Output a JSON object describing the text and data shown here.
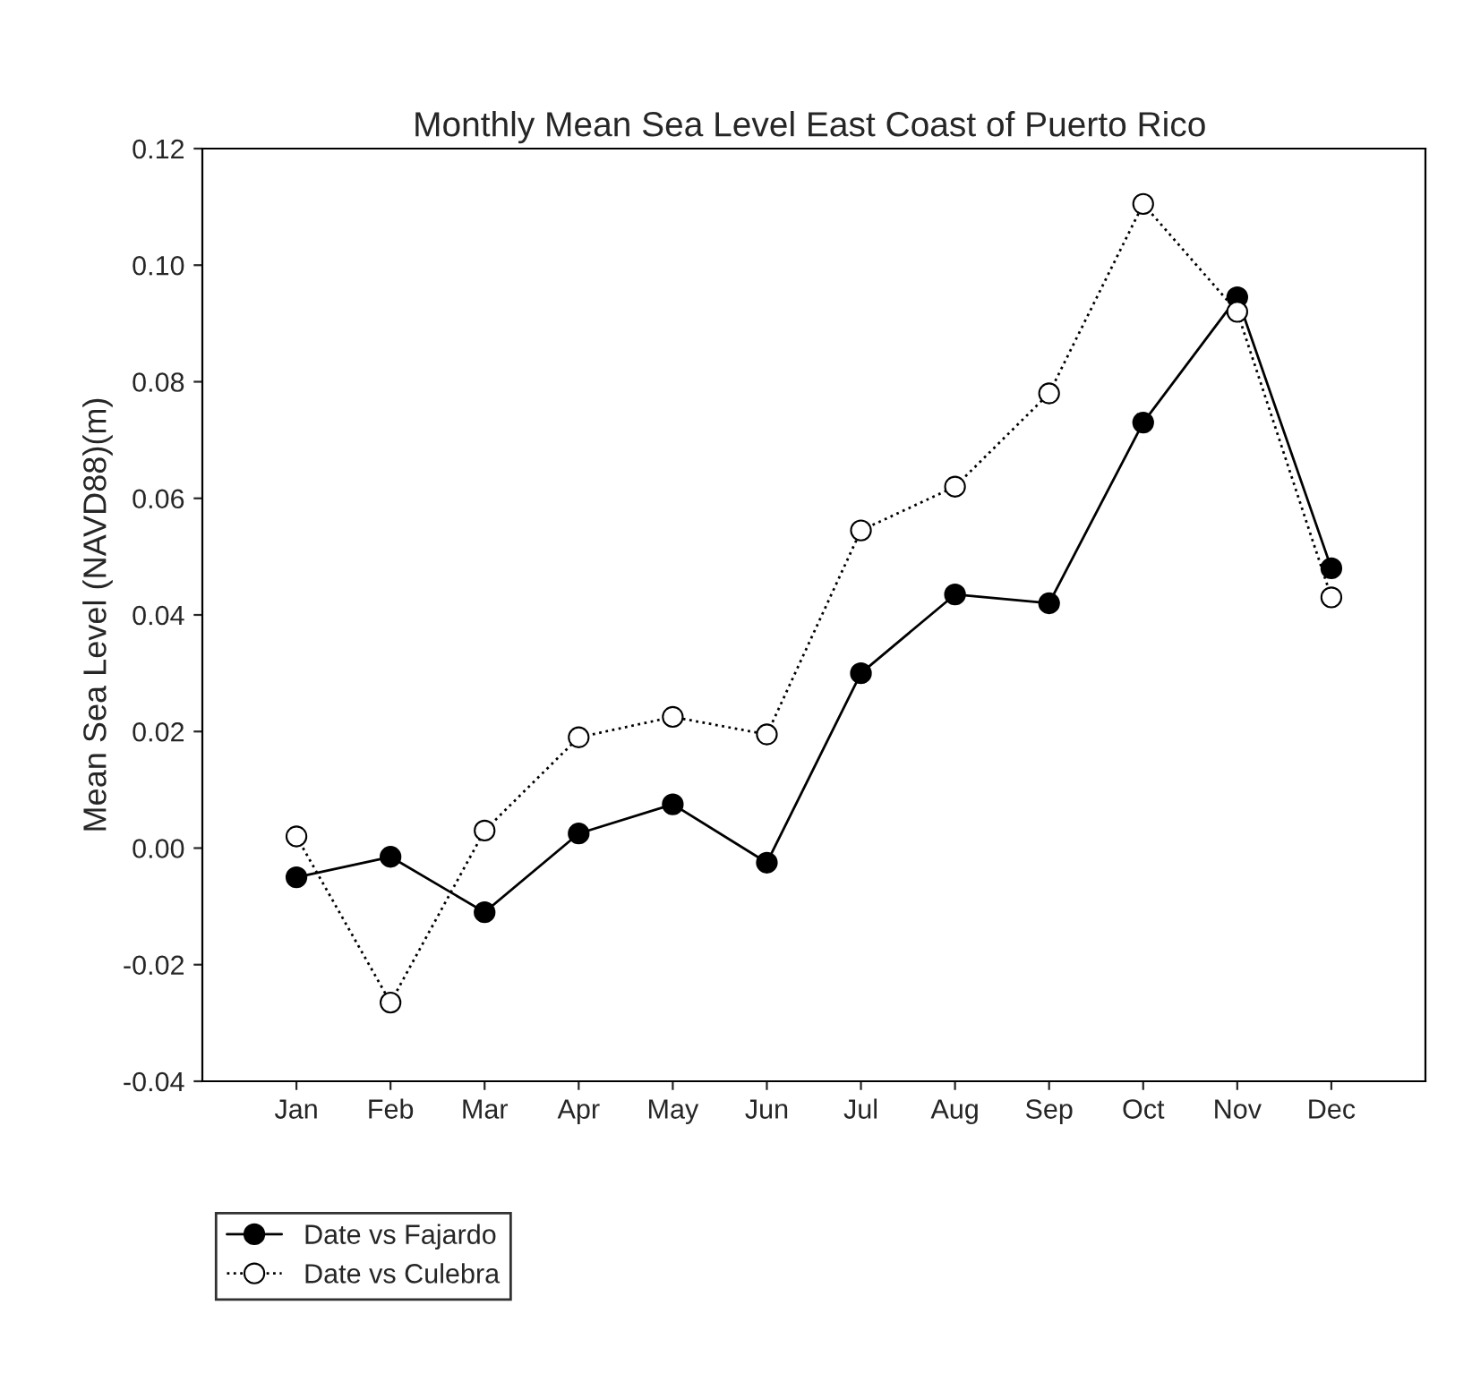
{
  "chart_data": {
    "type": "line",
    "title": "Monthly Mean Sea Level East Coast of Puerto Rico",
    "ylabel": "Mean Sea Level (NAVD88)(m)",
    "categories": [
      "Jan",
      "Feb",
      "Mar",
      "Apr",
      "May",
      "Jun",
      "Jul",
      "Aug",
      "Sep",
      "Oct",
      "Nov",
      "Dec"
    ],
    "series": [
      {
        "name": "Date vs Fajardo",
        "color": "#000000",
        "line_style": "solid",
        "marker": "circle",
        "values": [
          -0.005,
          -0.0015,
          -0.011,
          0.0025,
          0.0075,
          -0.0025,
          0.03,
          0.0435,
          0.042,
          0.073,
          0.0945,
          0.048
        ]
      },
      {
        "name": "Date vs Culebra",
        "color": "#000000",
        "line_style": "dotted",
        "marker": "circle",
        "values": [
          0.002,
          -0.0265,
          0.003,
          0.019,
          0.0225,
          0.0195,
          0.0545,
          0.062,
          0.078,
          0.1105,
          0.092,
          0.043
        ]
      }
    ],
    "ylim": [
      -0.04,
      0.12
    ],
    "yticks": [
      {
        "value": -0.04,
        "label": "-0.04"
      },
      {
        "value": -0.02,
        "label": "-0.02"
      },
      {
        "value": 0,
        "label": "0.00"
      },
      {
        "value": 0.02,
        "label": "0.02"
      },
      {
        "value": 0.04,
        "label": "0.04"
      },
      {
        "value": 0.06,
        "label": "0.06"
      },
      {
        "value": 0.08,
        "label": "0.08"
      },
      {
        "value": 0.1,
        "label": "0.10"
      },
      {
        "value": 0.12,
        "label": "0.12"
      }
    ],
    "grid": false,
    "legend": "bottom left"
  }
}
